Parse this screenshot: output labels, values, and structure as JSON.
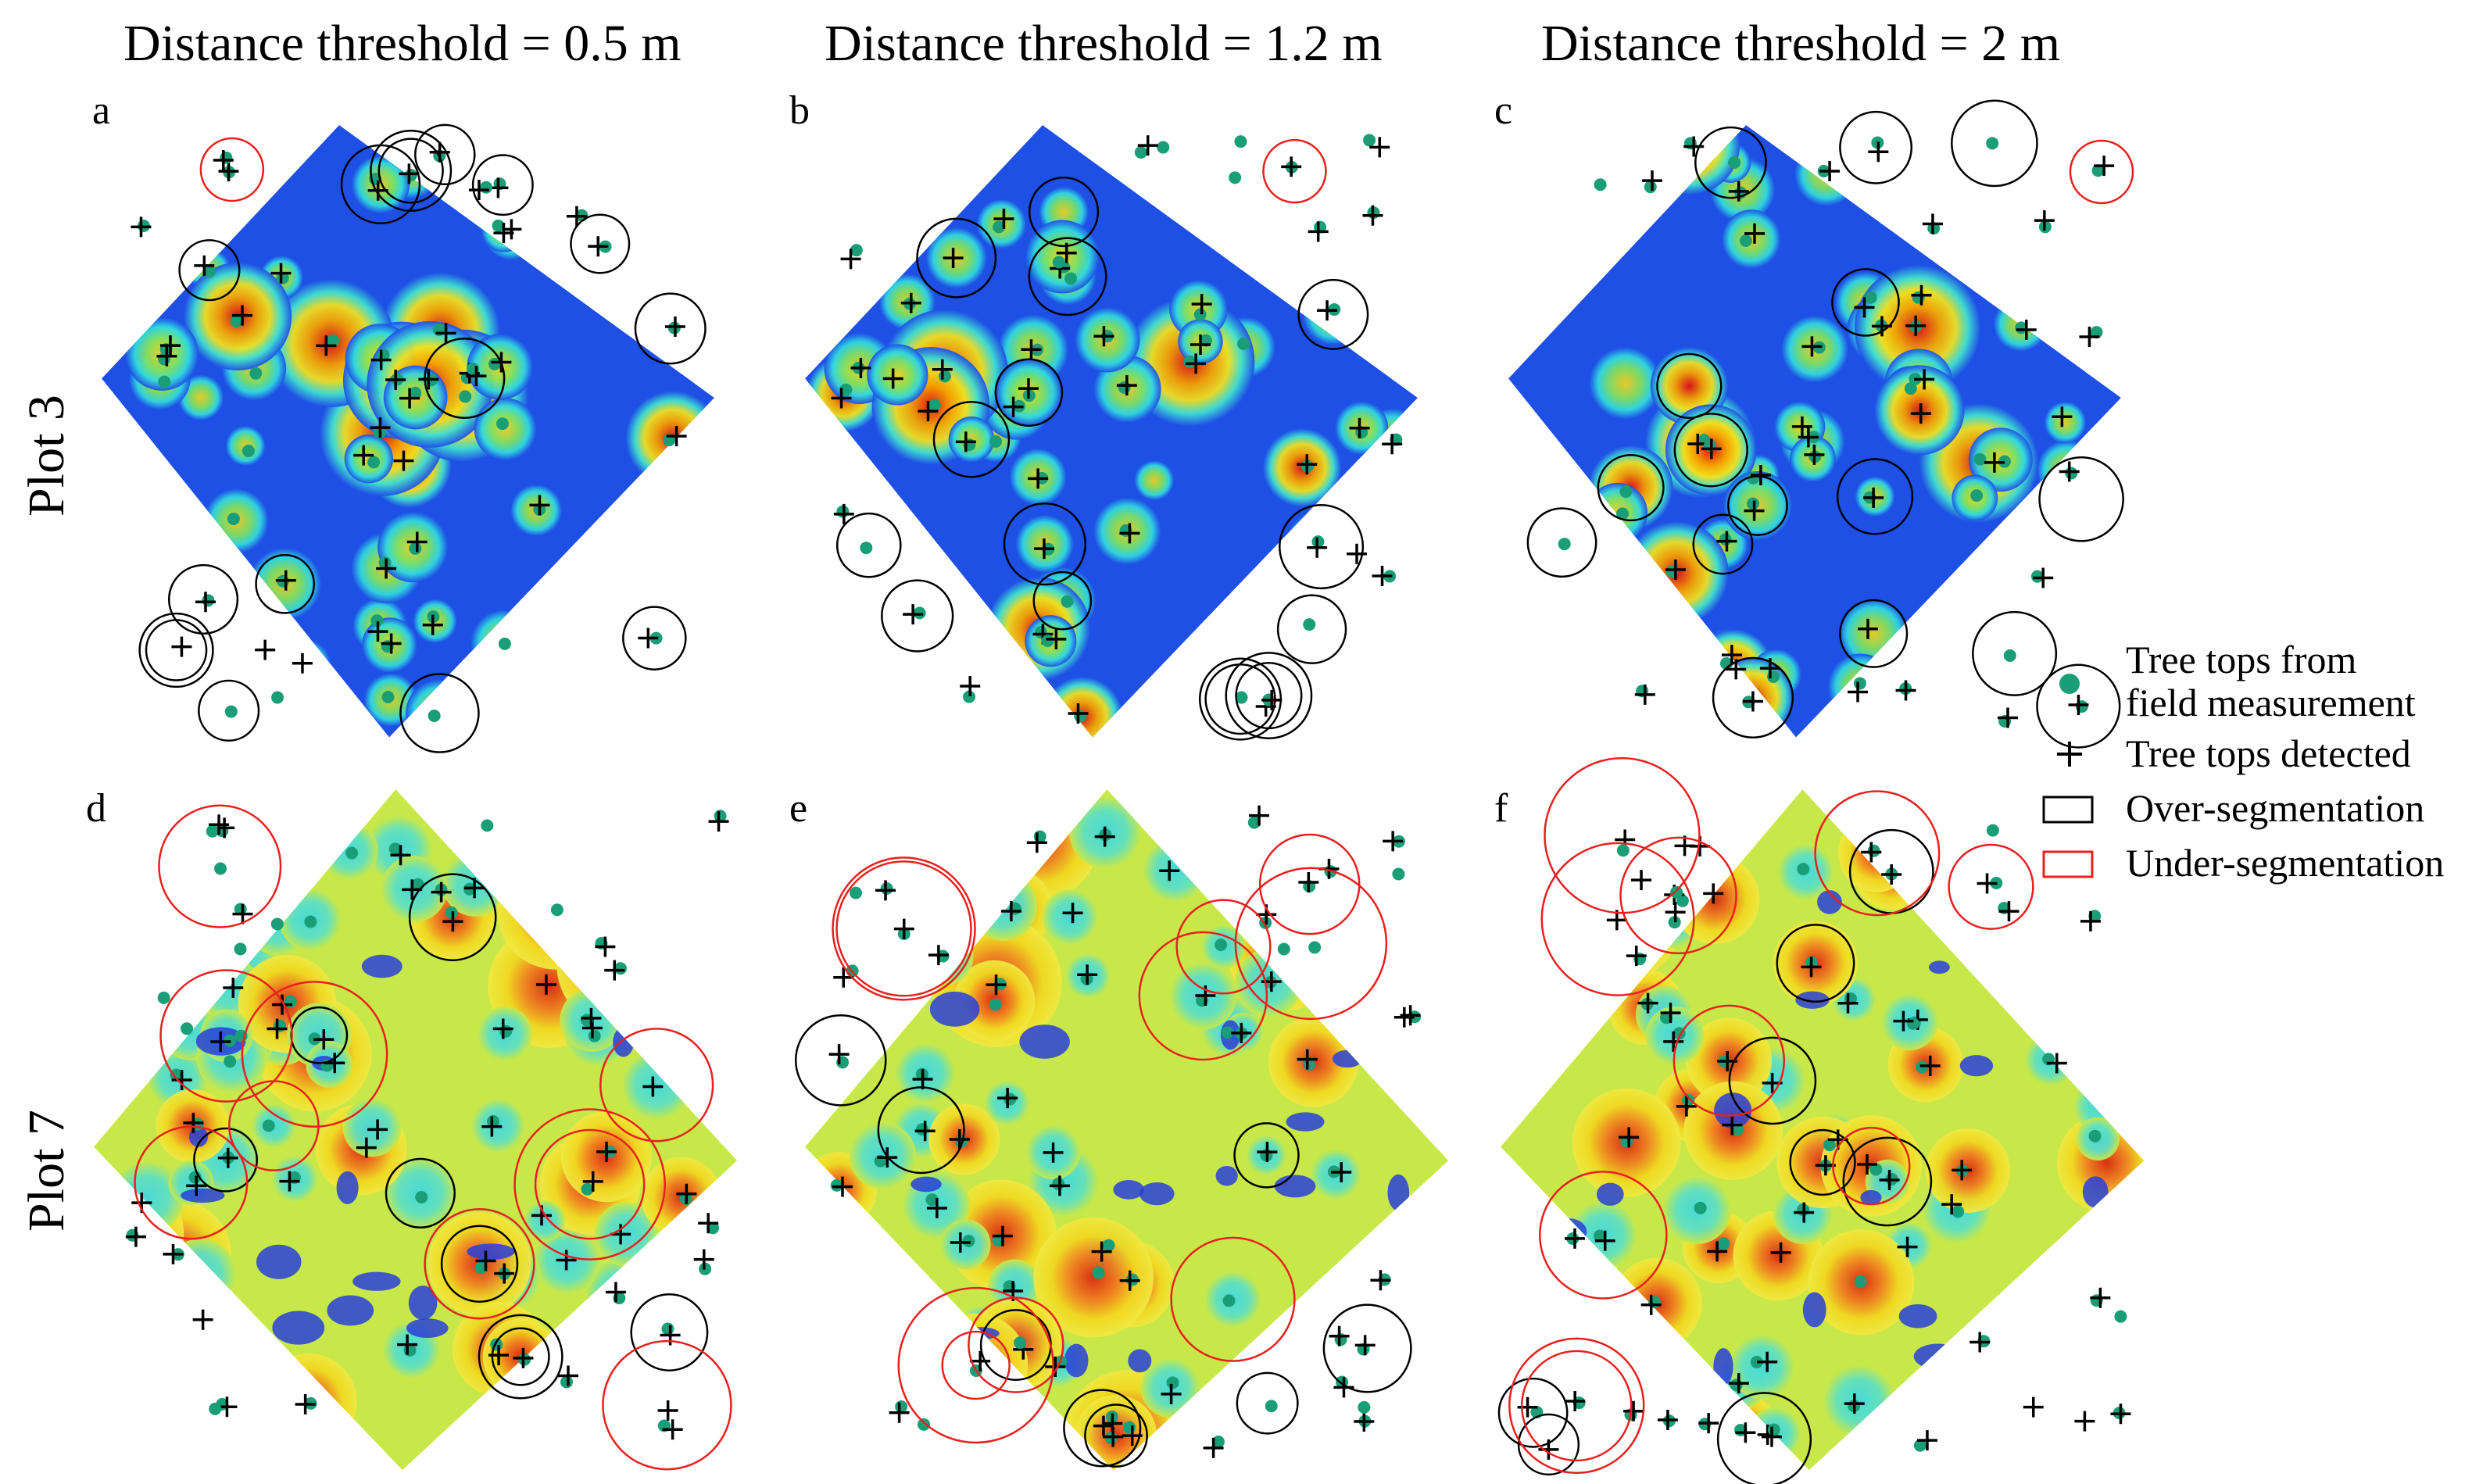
{
  "column_titles": [
    "Distance threshold = 0.5 m",
    "Distance threshold = 1.2 m",
    "Distance threshold = 2 m"
  ],
  "row_labels": [
    "Plot 3",
    "Plot 7"
  ],
  "panels": [
    {
      "label": "a",
      "plot": "Plot 3",
      "threshold": "0.5 m"
    },
    {
      "label": "b",
      "plot": "Plot 3",
      "threshold": "1.2 m"
    },
    {
      "label": "c",
      "plot": "Plot 3",
      "threshold": "2 m"
    },
    {
      "label": "d",
      "plot": "Plot 7",
      "threshold": "0.5 m"
    },
    {
      "label": "e",
      "plot": "Plot 7",
      "threshold": "1.2 m"
    },
    {
      "label": "f",
      "plot": "Plot 7",
      "threshold": "2 m"
    }
  ],
  "legend": {
    "field_line1": "Tree tops from",
    "field_line2": "field measurement",
    "detected": "Tree tops detected",
    "over": "Over-segmentation",
    "under": "Under-segmentation"
  },
  "colors": {
    "field_marker": "#1a9e78",
    "detected_marker": "#000000",
    "over_circle": "#000000",
    "under_circle": "#e8201e",
    "plot3_background": "#1e50e6",
    "plot7_background": "#c8e84a"
  }
}
